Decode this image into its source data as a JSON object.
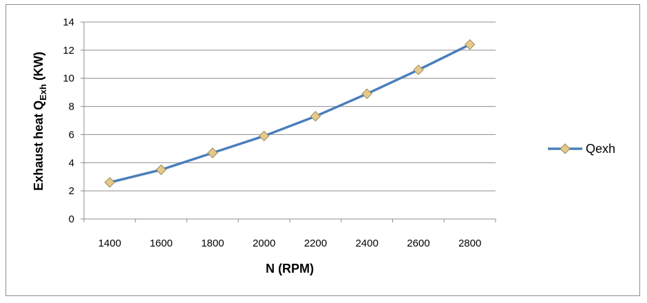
{
  "chart_data": {
    "type": "line",
    "x": [
      1400,
      1600,
      1800,
      2000,
      2200,
      2400,
      2600,
      2800
    ],
    "categories": [
      "1400",
      "1600",
      "1800",
      "2000",
      "2200",
      "2400",
      "2600",
      "2800"
    ],
    "series": [
      {
        "name": "Qexh",
        "values": [
          2.6,
          3.5,
          4.7,
          5.9,
          7.3,
          8.9,
          10.6,
          12.4
        ],
        "color": "#4a7ebb",
        "marker_color": "#e6c98a"
      }
    ],
    "xlabel": "N (RPM)",
    "ylabel": {
      "prefix": "Exhaust heat Q",
      "subscript": "Exh",
      "suffix": " (KW)"
    },
    "ylim": [
      0,
      14
    ],
    "yticks": [
      "0",
      "2",
      "4",
      "6",
      "8",
      "10",
      "12",
      "14"
    ],
    "grid": true,
    "legend_position": "right"
  }
}
